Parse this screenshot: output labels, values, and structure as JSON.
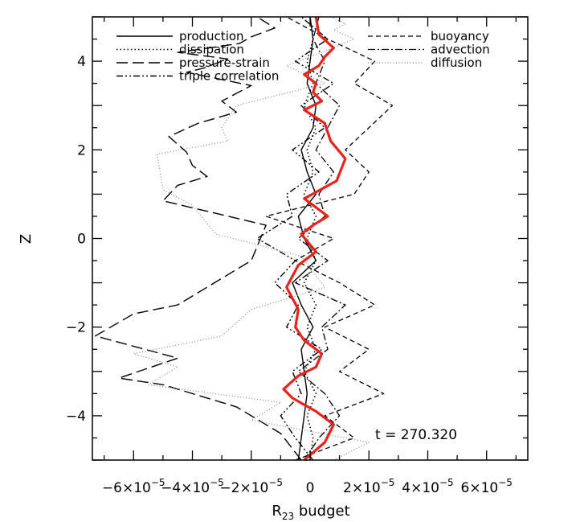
{
  "chart_data": {
    "type": "line",
    "title": "",
    "xlabel": "R",
    "xlabel_sub": "23",
    "xlabel_suffix": " budget",
    "ylabel": "Z",
    "xlim": [
      -7.4e-05,
      7.4e-05
    ],
    "ylim": [
      -5,
      5
    ],
    "x_ticks": [
      {
        "value": -6e-05,
        "mant": "−6×10",
        "exp": "−5"
      },
      {
        "value": -4e-05,
        "mant": "−4×10",
        "exp": "−5"
      },
      {
        "value": -2e-05,
        "mant": "−2×10",
        "exp": "−5"
      },
      {
        "value": 0,
        "mant": "0",
        "exp": ""
      },
      {
        "value": 2e-05,
        "mant": "2×10",
        "exp": "−5"
      },
      {
        "value": 4e-05,
        "mant": "4×10",
        "exp": "−5"
      },
      {
        "value": 6e-05,
        "mant": "6×10",
        "exp": "−5"
      }
    ],
    "y_ticks": [
      {
        "value": -4,
        "label": "−4"
      },
      {
        "value": -2,
        "label": "−2"
      },
      {
        "value": 0,
        "label": "0"
      },
      {
        "value": 2,
        "label": "2"
      },
      {
        "value": 4,
        "label": "4"
      }
    ],
    "grid": false,
    "annotation": "t  =  270.320",
    "legend": {
      "placement": "top"
    },
    "series": [
      {
        "name": "production",
        "style": "solid",
        "color": "#000000",
        "x": [
          -4e-06,
          -3e-06,
          -2e-06,
          -1e-06,
          -2e-06,
          -3e-06,
          1e-06,
          -3e-06,
          -6e-06,
          2e-06,
          -2e-06,
          -4e-06,
          2e-06,
          -1e-06,
          -3e-06,
          1e-06,
          2e-06,
          -1e-06,
          0.0,
          1e-06,
          0.0
        ],
        "y": [
          -5,
          -4.5,
          -4,
          -3.5,
          -3,
          -2.5,
          -2,
          -1.5,
          -1,
          -0.5,
          0,
          0.5,
          1,
          1.5,
          2,
          2.5,
          3,
          3.5,
          4,
          4.5,
          5
        ]
      },
      {
        "name": "dissipation",
        "style": "dotted",
        "color": "#000000",
        "x": [
          0.0,
          1e-06,
          -1e-06,
          2e-06,
          -2e-06,
          2e-06,
          -1e-06,
          2e-06,
          -2e-06,
          2e-06,
          -1e-06,
          2e-06,
          -2e-06,
          1e-06,
          -1e-06,
          2e-06,
          -2e-06,
          1e-06,
          -1e-06,
          1e-06,
          0.0
        ],
        "y": [
          -5,
          -4.5,
          -4,
          -3.5,
          -3,
          -2.5,
          -2,
          -1.5,
          -1,
          -0.5,
          0,
          0.5,
          1,
          1.5,
          2,
          2.5,
          3,
          3.5,
          4,
          4.5,
          5
        ]
      },
      {
        "name": "pressure-strain",
        "style": "long-dash",
        "color": "#000000",
        "x": [
          -3e-06,
          -1e-05,
          -2.5e-05,
          -5e-05,
          -6.5e-05,
          -4.5e-05,
          -7.3e-05,
          -6e-05,
          -4.5e-05,
          -3e-05,
          -2e-05,
          -1.5e-05,
          -5e-05,
          -4.5e-05,
          -3.5e-05,
          -4e-05,
          -4.2e-05,
          -4.8e-05,
          -3.8e-05,
          -2.5e-05,
          -3e-05,
          -2e-05,
          -4.2e-05,
          -3.6e-05,
          -2.8e-05,
          -4.5e-05,
          -2.4e-05,
          -2e-05,
          -1.2e-05,
          -1.8e-05
        ],
        "y": [
          -5,
          -4.4,
          -3.8,
          -3.3,
          -3.15,
          -2.7,
          -2.2,
          -1.7,
          -1.5,
          -0.9,
          -0.5,
          0.3,
          0.85,
          1.2,
          1.4,
          1.65,
          1.95,
          2.3,
          2.6,
          2.85,
          3.1,
          3.45,
          3.75,
          3.85,
          4.05,
          4.2,
          4.4,
          4.55,
          4.75,
          5.0
        ]
      },
      {
        "name": "triple correlation",
        "style": "dash-dot-dot",
        "color": "#000000",
        "x": [
          1e-06,
          -5e-06,
          -1e-05,
          -3e-06,
          -6e-06,
          4e-06,
          -8e-06,
          -4e-06,
          -1.2e-05,
          -5e-06,
          -1.8e-05,
          -6e-06,
          -8e-06,
          3e-06,
          -6e-06,
          5e-06,
          -3e-06,
          8e-06,
          -5e-06,
          6e-06,
          -3e-06
        ],
        "y": [
          -5,
          -4.5,
          -4,
          -3.5,
          -3,
          -2.5,
          -2,
          -1.5,
          -1,
          -0.5,
          0,
          0.5,
          1,
          1.5,
          2,
          2.5,
          3,
          3.5,
          4,
          4.5,
          5
        ]
      },
      {
        "name": "buoyancy",
        "style": "short-dash",
        "color": "#000000",
        "x": [
          -5e-06,
          1.5e-05,
          5e-06,
          2.5e-05,
          1e-05,
          2e-05,
          5e-06,
          2.2e-05,
          1e-05,
          -5e-06,
          8e-06,
          -1.5e-05,
          1.5e-05,
          2e-05,
          1.2e-05,
          2e-05,
          2.8e-05,
          1.5e-05,
          2.2e-05,
          6e-06,
          -8e-06
        ],
        "y": [
          -5,
          -4.5,
          -4,
          -3.5,
          -3,
          -2.5,
          -2,
          -1.5,
          -1,
          -0.5,
          0,
          0.5,
          1,
          1.5,
          2,
          2.5,
          3,
          3.5,
          4,
          4.5,
          5
        ]
      },
      {
        "name": "advection",
        "style": "dash-dot",
        "color": "#000000",
        "x": [
          -2e-06,
          3e-06,
          1e-05,
          5e-06,
          -4e-06,
          6e-06,
          4e-06,
          1.2e-05,
          -5e-06,
          6e-06,
          -4e-06,
          5e-06,
          3e-06,
          8e-06,
          2e-06,
          6e-06,
          1e-05,
          2e-06,
          5e-06,
          1e-06,
          3e-06
        ],
        "y": [
          -5,
          -4.5,
          -4,
          -3.5,
          -3,
          -2.5,
          -2,
          -1.5,
          -1,
          -0.5,
          0,
          0.5,
          1,
          1.5,
          2,
          2.5,
          3,
          3.5,
          4,
          4.5,
          5
        ]
      },
      {
        "name": "diffusion",
        "style": "fine-dotted",
        "color": "#888888",
        "x": [
          8e-06,
          2e-05,
          -2e-05,
          -1e-05,
          -5.5e-05,
          -4.5e-05,
          -6e-05,
          -3e-05,
          -2e-05,
          5e-06,
          -3e-06,
          -3.2e-05,
          -4e-05,
          -5e-05,
          -5.2e-05,
          -2.8e-05,
          -3e-05,
          -2.5e-05,
          5e-06,
          -8e-06,
          4e-06,
          1.5e-05,
          8e-06,
          1.2e-05,
          7e-06
        ],
        "y": [
          -5,
          -4.6,
          -4.1,
          -3.7,
          -3.3,
          -2.9,
          -2.6,
          -2.2,
          -1.6,
          -1.1,
          -0.4,
          0.1,
          0.75,
          1.1,
          1.9,
          2.2,
          2.5,
          3.0,
          3.5,
          3.9,
          4.2,
          4.5,
          4.7,
          4.85,
          5.0
        ]
      },
      {
        "name": "",
        "style": "solid-thick",
        "color": "#e8231c",
        "x": [
          -2e-06,
          5e-06,
          8e-06,
          2e-06,
          -6e-06,
          -9e-06,
          -4e-06,
          2e-06,
          4e-06,
          -2e-06,
          -5e-06,
          -4e-06,
          -8e-06,
          -4e-06,
          2e-06,
          -3e-06,
          1e-06,
          6e-06,
          -2e-06,
          9e-06,
          1.2e-05,
          7e-06,
          5e-06,
          -2e-06,
          4e-06,
          1e-06,
          2e-06,
          -2e-06,
          3e-06,
          5e-06,
          8e-06,
          3e-06,
          2e-06
        ],
        "y": [
          -5,
          -4.6,
          -4.2,
          -3.9,
          -3.6,
          -3.4,
          -3.1,
          -2.9,
          -2.6,
          -2.3,
          -2.0,
          -1.6,
          -1.1,
          -0.6,
          -0.3,
          0.1,
          0.3,
          0.5,
          0.9,
          1.3,
          1.8,
          2.2,
          2.6,
          2.9,
          3.1,
          3.3,
          3.5,
          3.7,
          3.9,
          4.1,
          4.3,
          4.6,
          5.0
        ]
      }
    ]
  }
}
